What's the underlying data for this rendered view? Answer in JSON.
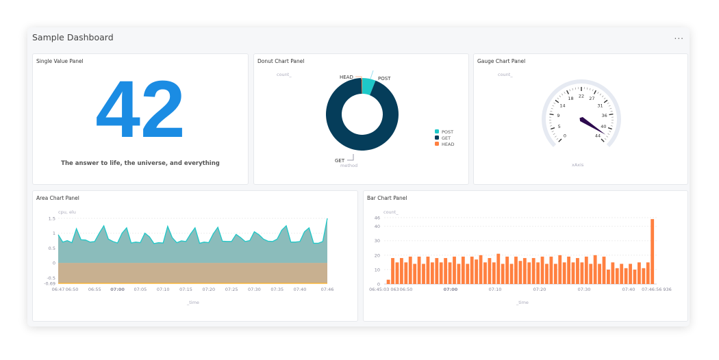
{
  "dashboard": {
    "title": "Sample Dashboard",
    "more_label": "..."
  },
  "single_value": {
    "title": "Single Value Panel",
    "value": "42",
    "caption": "The answer to life, the universe, and everything"
  },
  "donut": {
    "title": "Donut Chart Panel",
    "ylabel": "count_",
    "xlabel": "method"
  },
  "gauge": {
    "title": "Gauge Chart Panel",
    "ylabel": "count_",
    "xlabel": "xAxis"
  },
  "area": {
    "title": "Area Chart Panel",
    "ylabel": "cpu, elu",
    "xlabel": "_time"
  },
  "bar": {
    "title": "Bar Chart Panel",
    "ylabel": "count_",
    "xlabel": "_time"
  },
  "chart_data": [
    {
      "type": "pie",
      "variant": "donut",
      "labels": [
        "POST",
        "GET",
        "HEAD"
      ],
      "values": [
        6,
        93.7,
        0.3
      ],
      "colors": [
        "#1ec8c8",
        "#053d5a",
        "#ff8040"
      ],
      "legend": [
        "POST",
        "GET",
        "HEAD"
      ],
      "legend_placement": "right"
    },
    {
      "type": "gauge",
      "min": 0,
      "max": 44,
      "value": 42,
      "tick_labels": [
        "0",
        "5",
        "9",
        "14",
        "18",
        "22",
        "27",
        "31",
        "36",
        "40",
        "44"
      ],
      "needle_color": "#2d0a4e",
      "band_color": "#e6eaf2"
    },
    {
      "type": "area",
      "x_ticks": [
        "06:47",
        "06:50",
        "06:55",
        "07:00",
        "07:05",
        "07:10",
        "07:15",
        "07:20",
        "07:25",
        "07:30",
        "07:35",
        "07:40",
        "07:46"
      ],
      "y_ticks": [
        "1.5",
        "1",
        "0.5",
        "0",
        "-0.5",
        "-0.69"
      ],
      "ylim": [
        -0.69,
        1.5
      ],
      "series": [
        {
          "values": [
            0.95,
            0.7,
            0.75,
            0.68,
            1.15,
            0.78,
            0.77,
            0.7,
            0.72,
            1.0,
            1.25,
            0.8,
            0.72,
            0.67,
            1.0,
            1.18,
            0.67,
            0.7,
            0.68,
            1.0,
            0.88,
            0.65,
            0.68,
            0.67,
            1.23,
            0.85,
            0.68,
            0.74,
            0.72,
            0.97,
            1.18,
            0.66,
            0.7,
            0.68,
            0.98,
            1.2,
            0.73,
            0.72,
            0.72,
            0.96,
            0.85,
            0.72,
            0.75,
            1.05,
            0.95,
            0.8,
            0.73,
            0.72,
            0.8,
            1.1,
            1.25,
            0.7,
            0.7,
            0.72,
            1.05,
            1.18,
            0.66,
            0.66,
            0.72,
            1.5
          ],
          "color": "#1ec8c8",
          "fill": "#8bbcbb"
        },
        {
          "values": "constant -0.69",
          "constant": -0.69,
          "color": "#ffb020",
          "fill": "#c8b090"
        }
      ],
      "grid": true
    },
    {
      "type": "bar",
      "x_ticks": [
        "06:45:03 063",
        "06:50",
        "07:00",
        "07:10",
        "07:20",
        "07:30",
        "07:40",
        "07:46:56 936"
      ],
      "y_ticks": [
        "0",
        "10",
        "20",
        "30",
        "40",
        "46"
      ],
      "ylim": [
        0,
        46
      ],
      "color": "#ff8040",
      "values": [
        3,
        18,
        15,
        18,
        15,
        19,
        14,
        19,
        14,
        19,
        15,
        18,
        15,
        18,
        15,
        19,
        14,
        19,
        14,
        19,
        17,
        20,
        15,
        18,
        15,
        21,
        14,
        19,
        14,
        19,
        16,
        18,
        15,
        18,
        15,
        19,
        14,
        19,
        14,
        20,
        15,
        19,
        15,
        18,
        15,
        19,
        14,
        20,
        14,
        19,
        10,
        15,
        11,
        14,
        11,
        14,
        10,
        15,
        11,
        15,
        45
      ],
      "grid": true
    }
  ]
}
